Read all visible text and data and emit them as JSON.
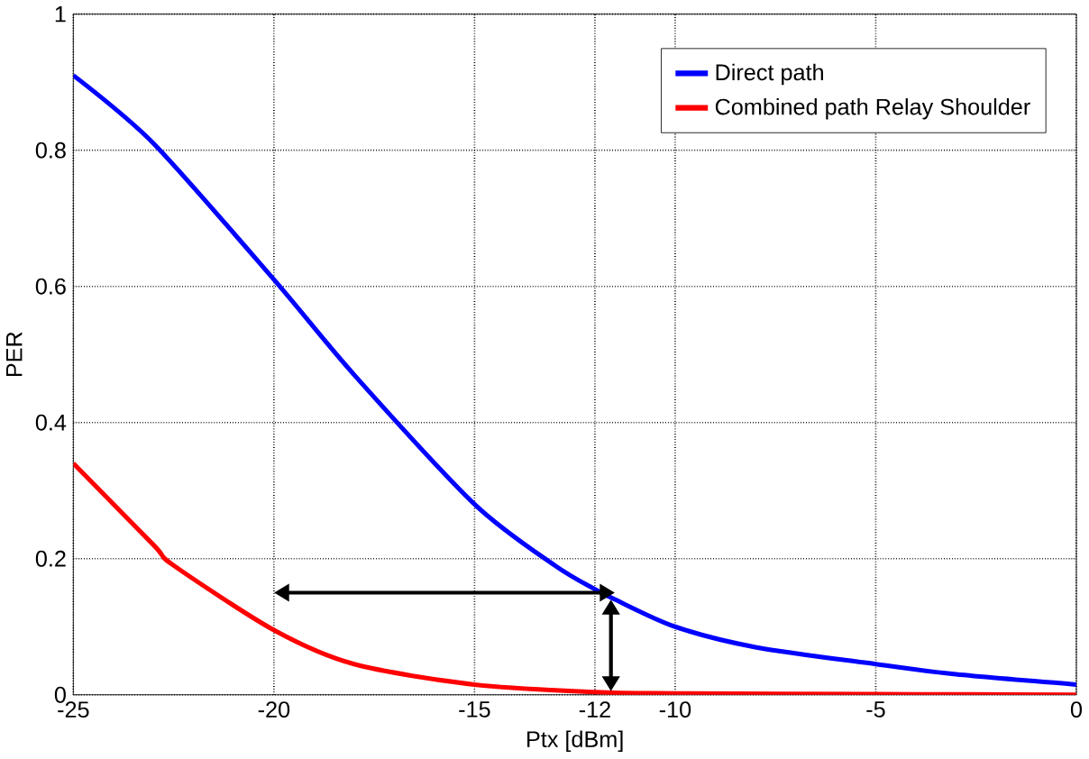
{
  "chart_data": {
    "type": "line",
    "xlabel": "Ptx [dBm]",
    "ylabel": "PER",
    "xlim": [
      -25,
      0
    ],
    "xticks": [
      -25,
      -20,
      -15,
      -12,
      -10,
      -5,
      0
    ],
    "ylim": [
      0,
      1
    ],
    "yticks": [
      0,
      0.2,
      0.4,
      0.6,
      0.8,
      1
    ],
    "grid": true,
    "legend": "top right",
    "line_style": "solid",
    "marker": "none",
    "series": [
      {
        "name": "Direct path",
        "color": "#0000ff",
        "x": [
          -25,
          -23,
          -20,
          -18,
          -15,
          -13,
          -12,
          -11.5,
          -10,
          -8,
          -5,
          -3,
          0
        ],
        "values": [
          0.91,
          0.81,
          0.61,
          0.47,
          0.28,
          0.19,
          0.155,
          0.14,
          0.1,
          0.07,
          0.045,
          0.03,
          0.015
        ]
      },
      {
        "name": "Combined path Relay Shoulder",
        "color": "#ff0000",
        "x": [
          -25,
          -23,
          -22.5,
          -20,
          -18,
          -15,
          -12,
          -10,
          -5,
          0
        ],
        "values": [
          0.34,
          0.22,
          0.19,
          0.095,
          0.045,
          0.015,
          0.004,
          0.002,
          0.001,
          0
        ]
      }
    ]
  }
}
